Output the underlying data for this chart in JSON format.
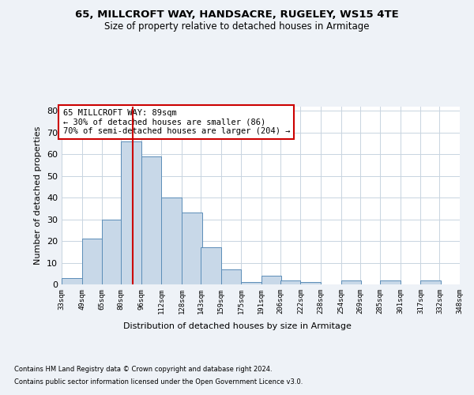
{
  "title1": "65, MILLCROFT WAY, HANDSACRE, RUGELEY, WS15 4TE",
  "title2": "Size of property relative to detached houses in Armitage",
  "xlabel": "Distribution of detached houses by size in Armitage",
  "ylabel": "Number of detached properties",
  "bar_color": "#c8d8e8",
  "bar_edge_color": "#5b8db8",
  "vline_x": 89,
  "vline_color": "#cc0000",
  "annotation_text": "65 MILLCROFT WAY: 89sqm\n← 30% of detached houses are smaller (86)\n70% of semi-detached houses are larger (204) →",
  "annotation_box_color": "white",
  "annotation_box_edge": "#cc0000",
  "bin_edges": [
    33,
    49,
    65,
    80,
    96,
    112,
    128,
    143,
    159,
    175,
    191,
    206,
    222,
    238,
    254,
    269,
    285,
    301,
    317,
    332,
    348
  ],
  "bin_labels": [
    "33sqm",
    "49sqm",
    "65sqm",
    "80sqm",
    "96sqm",
    "112sqm",
    "128sqm",
    "143sqm",
    "159sqm",
    "175sqm",
    "191sqm",
    "206sqm",
    "222sqm",
    "238sqm",
    "254sqm",
    "269sqm",
    "285sqm",
    "301sqm",
    "317sqm",
    "332sqm",
    "348sqm"
  ],
  "counts": [
    3,
    21,
    30,
    66,
    59,
    40,
    33,
    17,
    7,
    1,
    4,
    2,
    1,
    0,
    2,
    0,
    2,
    0,
    2,
    0
  ],
  "ylim": [
    0,
    82
  ],
  "yticks": [
    0,
    10,
    20,
    30,
    40,
    50,
    60,
    70,
    80
  ],
  "footnote1": "Contains HM Land Registry data © Crown copyright and database right 2024.",
  "footnote2": "Contains public sector information licensed under the Open Government Licence v3.0.",
  "background_color": "#eef2f7",
  "plot_bg_color": "#ffffff",
  "grid_color": "#c8d4e0"
}
